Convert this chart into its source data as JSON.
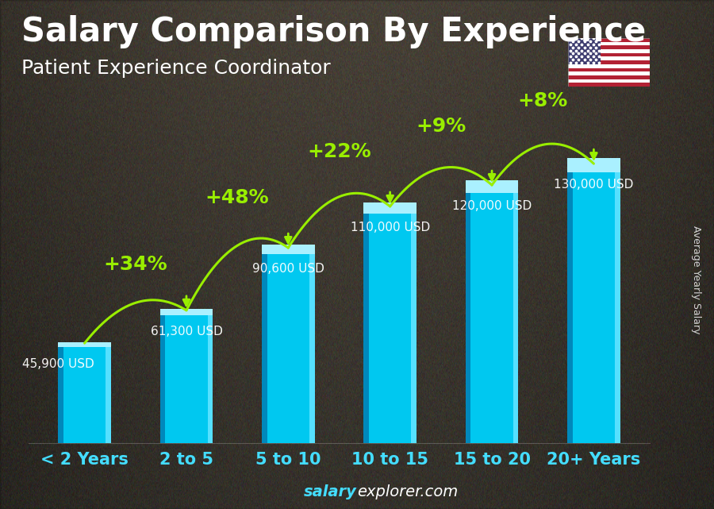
{
  "title": "Salary Comparison By Experience",
  "subtitle": "Patient Experience Coordinator",
  "categories": [
    "< 2 Years",
    "2 to 5",
    "5 to 10",
    "10 to 15",
    "15 to 20",
    "20+ Years"
  ],
  "values": [
    45900,
    61300,
    90600,
    110000,
    120000,
    130000
  ],
  "labels": [
    "45,900 USD",
    "61,300 USD",
    "90,600 USD",
    "110,000 USD",
    "120,000 USD",
    "130,000 USD"
  ],
  "pct_changes": [
    "+34%",
    "+48%",
    "+22%",
    "+9%",
    "+8%"
  ],
  "bar_color_main": "#00c8f0",
  "bar_color_left": "#0088bb",
  "bar_color_right": "#55e0ff",
  "bar_color_top": "#aaf0ff",
  "bg_color": "#6b5a4e",
  "overlay_color": "#1a1008",
  "text_color_white": "#ffffff",
  "text_color_cyan": "#44ddff",
  "text_color_green": "#99ee00",
  "ylabel": "Average Yearly Salary",
  "footer_bold": "salary",
  "footer_regular": "explorer.com",
  "ylim_max": 155000,
  "title_fontsize": 30,
  "subtitle_fontsize": 18,
  "label_fontsize": 11,
  "pct_fontsize": 18,
  "xtick_fontsize": 15,
  "footer_fontsize": 14,
  "ylabel_fontsize": 9,
  "bar_width": 0.52
}
